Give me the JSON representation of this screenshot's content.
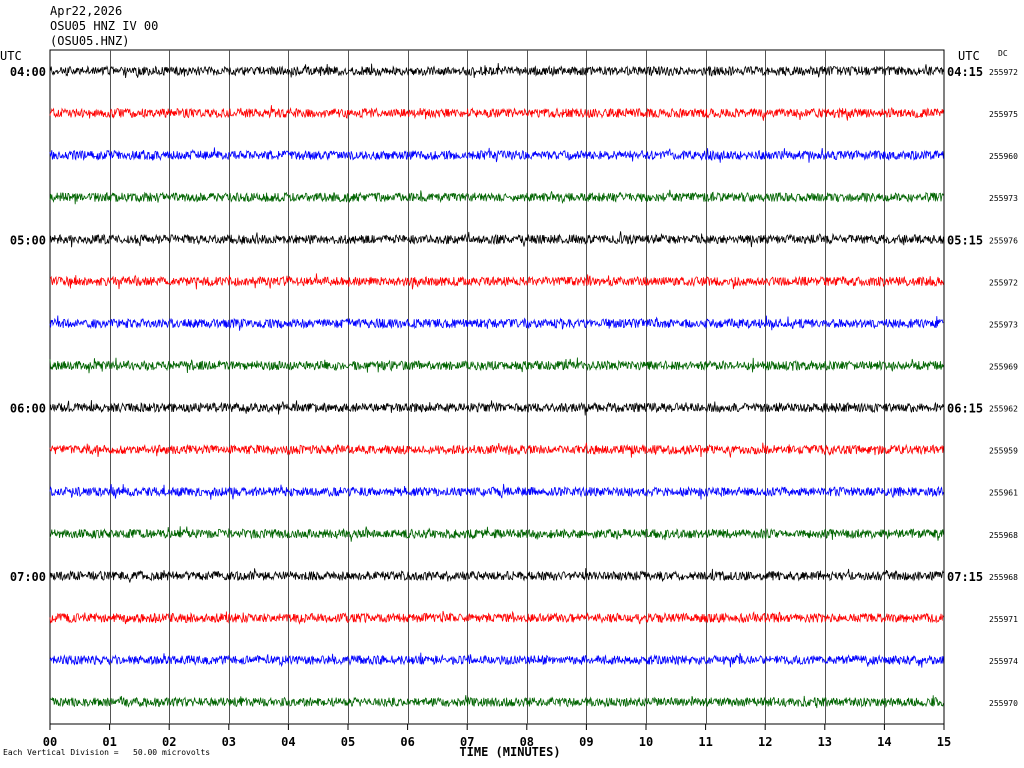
{
  "header": {
    "date": "Apr22,2026",
    "station_line": "OSU05 HNZ IV 00",
    "station_code": "(OSU05.HNZ)"
  },
  "labels": {
    "utc_left": "UTC",
    "utc_right": "UTC",
    "dc": "DC",
    "footnote": "Each Vertical Division =   50.00 microvolts"
  },
  "colors": {
    "trace_cycle": [
      "#000000",
      "#ff0000",
      "#0000ff",
      "#006400"
    ],
    "grid": "#000000"
  },
  "chart_data": {
    "type": "line",
    "title": "",
    "xlabel": "TIME (MINUTES)",
    "ylabel": "",
    "xlim": [
      0,
      15
    ],
    "x_ticks": [
      "00",
      "01",
      "02",
      "03",
      "04",
      "05",
      "06",
      "07",
      "08",
      "09",
      "10",
      "11",
      "12",
      "13",
      "14",
      "15"
    ],
    "rows": [
      {
        "left": "04:00",
        "right": "04:15",
        "dc": "255972"
      },
      {
        "left": "",
        "right": "",
        "dc": "255975"
      },
      {
        "left": "",
        "right": "",
        "dc": "255960"
      },
      {
        "left": "",
        "right": "",
        "dc": "255973"
      },
      {
        "left": "05:00",
        "right": "05:15",
        "dc": "255976"
      },
      {
        "left": "",
        "right": "",
        "dc": "255972"
      },
      {
        "left": "",
        "right": "",
        "dc": "255973"
      },
      {
        "left": "",
        "right": "",
        "dc": "255969"
      },
      {
        "left": "06:00",
        "right": "06:15",
        "dc": "255962"
      },
      {
        "left": "",
        "right": "",
        "dc": "255959"
      },
      {
        "left": "",
        "right": "",
        "dc": "255961"
      },
      {
        "left": "",
        "right": "",
        "dc": "255968"
      },
      {
        "left": "07:00",
        "right": "07:15",
        "dc": "255968"
      },
      {
        "left": "",
        "right": "",
        "dc": "255971"
      },
      {
        "left": "",
        "right": "",
        "dc": "255974"
      },
      {
        "left": "",
        "right": "",
        "dc": "255970"
      }
    ]
  }
}
